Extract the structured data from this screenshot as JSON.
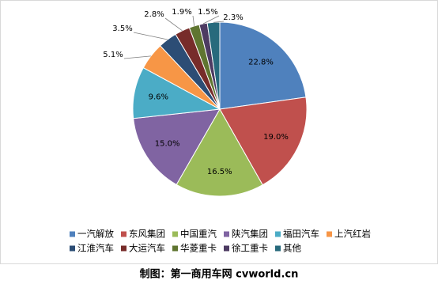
{
  "chart_data": {
    "type": "pie",
    "categories": [
      "一汽解放",
      "东风集团",
      "中国重汽",
      "陕汽集团",
      "福田汽车",
      "上汽红岩",
      "江淮汽车",
      "大运汽车",
      "华菱重卡",
      "徐工重卡",
      "其他"
    ],
    "values": [
      22.8,
      19.0,
      16.5,
      15.0,
      9.6,
      5.1,
      3.5,
      2.8,
      1.9,
      1.5,
      2.3
    ],
    "value_labels": [
      "22.8%",
      "19.0%",
      "16.5%",
      "15.0%",
      "9.6%",
      "5.1%",
      "3.5%",
      "2.8%",
      "1.9%",
      "1.5%",
      "2.3%"
    ],
    "colors": [
      "#4f81bd",
      "#c0504d",
      "#9bbb59",
      "#8064a2",
      "#4bacc6",
      "#f79646",
      "#2c4d75",
      "#772c2a",
      "#5f7530",
      "#4d3b62",
      "#276a7c"
    ],
    "legend": "bottom"
  },
  "caption": "制图：第一商用车网 cvworld.cn"
}
